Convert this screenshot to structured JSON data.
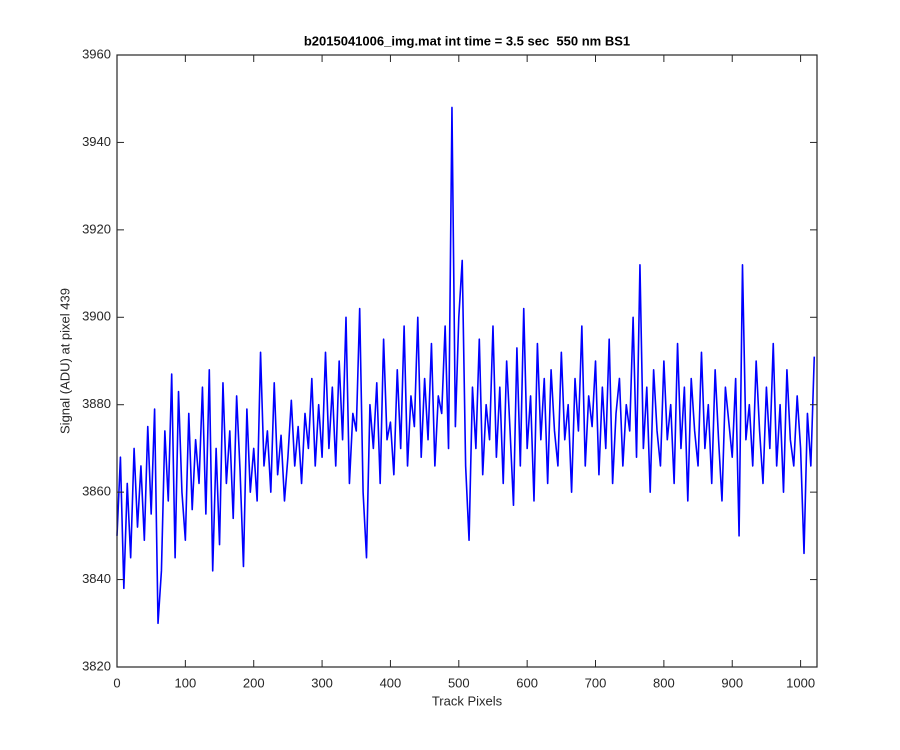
{
  "chart_data": {
    "type": "line",
    "title": "b2015041006_img.mat int time = 3.5 sec  550 nm BS1",
    "xlabel": "Track Pixels",
    "ylabel": "Signal (ADU) at pixel 439",
    "x": [
      0,
      5,
      10,
      15,
      20,
      25,
      30,
      35,
      40,
      45,
      50,
      55,
      60,
      65,
      70,
      75,
      80,
      85,
      90,
      95,
      100,
      105,
      110,
      115,
      120,
      125,
      130,
      135,
      140,
      145,
      150,
      155,
      160,
      165,
      170,
      175,
      180,
      185,
      190,
      195,
      200,
      205,
      210,
      215,
      220,
      225,
      230,
      235,
      240,
      245,
      250,
      255,
      260,
      265,
      270,
      275,
      280,
      285,
      290,
      295,
      300,
      305,
      310,
      315,
      320,
      325,
      330,
      335,
      340,
      345,
      350,
      355,
      360,
      365,
      370,
      375,
      380,
      385,
      390,
      395,
      400,
      405,
      410,
      415,
      420,
      425,
      430,
      435,
      440,
      445,
      450,
      455,
      460,
      465,
      470,
      475,
      480,
      485,
      490,
      495,
      500,
      505,
      510,
      515,
      520,
      525,
      530,
      535,
      540,
      545,
      550,
      555,
      560,
      565,
      570,
      575,
      580,
      585,
      590,
      595,
      600,
      605,
      610,
      615,
      620,
      625,
      630,
      635,
      640,
      645,
      650,
      655,
      660,
      665,
      670,
      675,
      680,
      685,
      690,
      695,
      700,
      705,
      710,
      715,
      720,
      725,
      730,
      735,
      740,
      745,
      750,
      755,
      760,
      765,
      770,
      775,
      780,
      785,
      790,
      795,
      800,
      805,
      810,
      815,
      820,
      825,
      830,
      835,
      840,
      845,
      850,
      855,
      860,
      865,
      870,
      875,
      880,
      885,
      890,
      895,
      900,
      905,
      910,
      915,
      920,
      925,
      930,
      935,
      940,
      945,
      950,
      955,
      960,
      965,
      970,
      975,
      980,
      985,
      990,
      995,
      1000,
      1005,
      1010,
      1015,
      1020
    ],
    "series": [
      {
        "color": "#0000ff",
        "values": [
          3850,
          3868,
          3838,
          3862,
          3845,
          3870,
          3852,
          3866,
          3849,
          3875,
          3855,
          3879,
          3830,
          3842,
          3874,
          3858,
          3887,
          3845,
          3883,
          3860,
          3849,
          3878,
          3856,
          3872,
          3862,
          3884,
          3855,
          3888,
          3842,
          3870,
          3848,
          3885,
          3862,
          3874,
          3854,
          3882,
          3865,
          3843,
          3879,
          3860,
          3870,
          3858,
          3892,
          3866,
          3874,
          3860,
          3885,
          3864,
          3873,
          3858,
          3868,
          3881,
          3866,
          3875,
          3862,
          3878,
          3870,
          3886,
          3866,
          3880,
          3868,
          3892,
          3870,
          3884,
          3866,
          3890,
          3872,
          3900,
          3862,
          3878,
          3874,
          3902,
          3860,
          3845,
          3880,
          3870,
          3885,
          3862,
          3895,
          3872,
          3876,
          3864,
          3888,
          3870,
          3898,
          3866,
          3882,
          3875,
          3900,
          3868,
          3886,
          3872,
          3894,
          3866,
          3882,
          3878,
          3898,
          3870,
          3948,
          3875,
          3900,
          3913,
          3866,
          3849,
          3884,
          3870,
          3895,
          3864,
          3880,
          3872,
          3898,
          3868,
          3884,
          3862,
          3890,
          3874,
          3857,
          3893,
          3866,
          3902,
          3870,
          3882,
          3858,
          3894,
          3872,
          3886,
          3862,
          3888,
          3874,
          3866,
          3892,
          3872,
          3880,
          3860,
          3886,
          3874,
          3898,
          3866,
          3882,
          3875,
          3890,
          3864,
          3884,
          3870,
          3895,
          3862,
          3878,
          3886,
          3866,
          3880,
          3874,
          3900,
          3868,
          3912,
          3870,
          3884,
          3860,
          3888,
          3874,
          3866,
          3890,
          3872,
          3880,
          3862,
          3894,
          3870,
          3884,
          3858,
          3886,
          3874,
          3866,
          3892,
          3870,
          3880,
          3862,
          3888,
          3872,
          3858,
          3884,
          3876,
          3868,
          3886,
          3850,
          3912,
          3872,
          3880,
          3866,
          3890,
          3874,
          3862,
          3884,
          3870,
          3894,
          3866,
          3880,
          3860,
          3888,
          3872,
          3866,
          3882,
          3870,
          3846,
          3878,
          3866,
          3891
        ]
      }
    ],
    "xlim": [
      0,
      1024
    ],
    "ylim": [
      3820,
      3960
    ],
    "xticks": [
      0,
      100,
      200,
      300,
      400,
      500,
      600,
      700,
      800,
      900,
      1000
    ],
    "yticks": [
      3820,
      3840,
      3860,
      3880,
      3900,
      3920,
      3940,
      3960
    ],
    "grid": false
  }
}
